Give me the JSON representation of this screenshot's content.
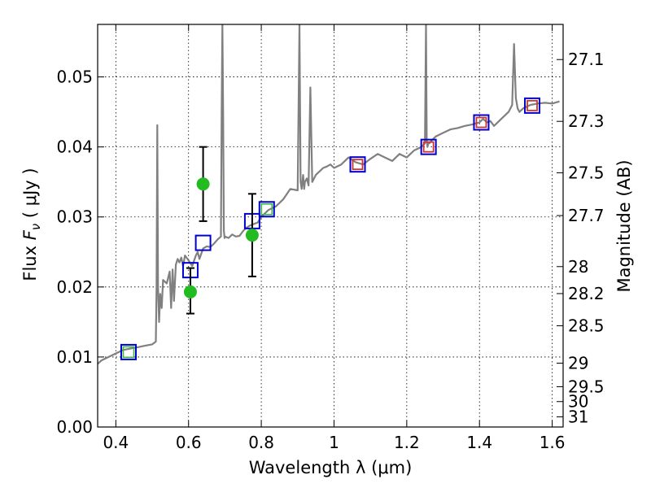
{
  "chart_data": {
    "type": "scatter",
    "xlabel": "Wavelength  λ (μm)",
    "ylabel": "Flux  Fν  ( μJy )",
    "ylabel_parts": {
      "prefix": "Flux  ",
      "symbol": "F",
      "subscript": "ν",
      "suffix": "  ( μJy )"
    },
    "ylabel_right": "Magnitude (AB)",
    "xlim": [
      0.35,
      1.63
    ],
    "ylim": [
      0.0,
      0.0575
    ],
    "grid": true,
    "x_ticks": [
      0.4,
      0.6,
      0.8,
      1.0,
      1.2,
      1.4,
      1.6
    ],
    "x_tick_labels": [
      "0.4",
      "0.6",
      "0.8",
      "1",
      "1.2",
      "1.4",
      "1.6"
    ],
    "y_ticks": [
      0.0,
      0.01,
      0.02,
      0.03,
      0.04,
      0.05
    ],
    "y_tick_labels": [
      "0.00",
      "0.01",
      "0.02",
      "0.03",
      "0.04",
      "0.05"
    ],
    "right_ticks": [
      27.1,
      27.3,
      27.5,
      27.7,
      28,
      28.2,
      28.5,
      29,
      29.5,
      30,
      31
    ],
    "right_tick_labels": [
      "27.1",
      "27.3",
      "27.5",
      "27.7",
      "28",
      "28.2",
      "28.5",
      "29",
      "29.5",
      "30",
      "31"
    ],
    "series": [
      {
        "name": "model spectrum",
        "kind": "line",
        "color": "#808080",
        "x": [
          0.35,
          0.36,
          0.38,
          0.4,
          0.42,
          0.44,
          0.46,
          0.48,
          0.5,
          0.51,
          0.512,
          0.514,
          0.516,
          0.519,
          0.522,
          0.526,
          0.53,
          0.54,
          0.548,
          0.552,
          0.556,
          0.56,
          0.565,
          0.57,
          0.575,
          0.58,
          0.585,
          0.59,
          0.6,
          0.61,
          0.62,
          0.625,
          0.63,
          0.64,
          0.65,
          0.66,
          0.67,
          0.68,
          0.689,
          0.691,
          0.693,
          0.695,
          0.697,
          0.699,
          0.7,
          0.71,
          0.72,
          0.73,
          0.74,
          0.75,
          0.76,
          0.77,
          0.78,
          0.79,
          0.8,
          0.82,
          0.84,
          0.86,
          0.88,
          0.9,
          0.905,
          0.908,
          0.911,
          0.913,
          0.915,
          0.918,
          0.92,
          0.925,
          0.93,
          0.935,
          0.94,
          0.95,
          0.96,
          0.97,
          0.98,
          0.99,
          1.0,
          1.02,
          1.04,
          1.06,
          1.08,
          1.1,
          1.12,
          1.14,
          1.16,
          1.18,
          1.2,
          1.22,
          1.24,
          1.25,
          1.253,
          1.255,
          1.257,
          1.259,
          1.262,
          1.27,
          1.28,
          1.3,
          1.32,
          1.34,
          1.36,
          1.38,
          1.4,
          1.41,
          1.42,
          1.43,
          1.44,
          1.46,
          1.48,
          1.49,
          1.495,
          1.5,
          1.505,
          1.51,
          1.52,
          1.54,
          1.56,
          1.58,
          1.6,
          1.62
        ],
        "y": [
          0.009,
          0.0095,
          0.01,
          0.0105,
          0.011,
          0.0112,
          0.0114,
          0.0116,
          0.0118,
          0.0122,
          0.02,
          0.0431,
          0.02,
          0.015,
          0.019,
          0.017,
          0.021,
          0.0205,
          0.0222,
          0.017,
          0.0225,
          0.018,
          0.0232,
          0.024,
          0.0235,
          0.0242,
          0.023,
          0.0245,
          0.0238,
          0.023,
          0.0245,
          0.025,
          0.024,
          0.0255,
          0.0258,
          0.0257,
          0.0262,
          0.0268,
          0.0272,
          0.045,
          0.0575,
          0.045,
          0.028,
          0.027,
          0.0272,
          0.027,
          0.0275,
          0.0272,
          0.0273,
          0.028,
          0.0285,
          0.0288,
          0.029,
          0.0292,
          0.03,
          0.031,
          0.0315,
          0.0325,
          0.034,
          0.0338,
          0.0575,
          0.035,
          0.034,
          0.035,
          0.036,
          0.034,
          0.035,
          0.0355,
          0.0345,
          0.0485,
          0.035,
          0.036,
          0.0365,
          0.037,
          0.0372,
          0.0375,
          0.037,
          0.0375,
          0.0385,
          0.0378,
          0.0375,
          0.0383,
          0.039,
          0.0385,
          0.038,
          0.039,
          0.0385,
          0.0395,
          0.04,
          0.0405,
          0.0575,
          0.041,
          0.04,
          0.0405,
          0.0405,
          0.041,
          0.0415,
          0.042,
          0.0425,
          0.0427,
          0.043,
          0.0432,
          0.0435,
          0.044,
          0.0435,
          0.0437,
          0.043,
          0.044,
          0.045,
          0.046,
          0.0547,
          0.047,
          0.0455,
          0.045,
          0.0455,
          0.046,
          0.0462,
          0.0463,
          0.0462,
          0.0465
        ]
      },
      {
        "name": "model photometry (blue squares)",
        "kind": "marker",
        "marker": "square",
        "color": "#0000cc",
        "x": [
          0.435,
          0.605,
          0.64,
          0.775,
          0.815,
          1.065,
          1.26,
          1.405,
          1.545
        ],
        "y": [
          0.0107,
          0.0224,
          0.0263,
          0.0294,
          0.0311,
          0.0375,
          0.04,
          0.0435,
          0.0459
        ]
      },
      {
        "name": "ground photometry (green squares)",
        "kind": "marker",
        "marker": "square",
        "color": "#3cb843",
        "x": [
          0.435,
          0.815
        ],
        "y": [
          0.0107,
          0.0311
        ]
      },
      {
        "name": "HST photometry (red squares)",
        "kind": "marker",
        "marker": "square",
        "color": "#cc3333",
        "x": [
          1.065,
          1.26,
          1.405,
          1.545
        ],
        "y": [
          0.0375,
          0.04,
          0.0435,
          0.0459
        ]
      },
      {
        "name": "observed photometry (green circles)",
        "kind": "marker",
        "marker": "circle",
        "color": "#22bb22",
        "x": [
          0.605,
          0.64,
          0.775
        ],
        "y": [
          0.0193,
          0.0347,
          0.0274
        ],
        "yerr_low": [
          0.0031,
          0.0053,
          0.0059
        ],
        "yerr_high": [
          0.0034,
          0.0053,
          0.0059
        ]
      }
    ]
  }
}
